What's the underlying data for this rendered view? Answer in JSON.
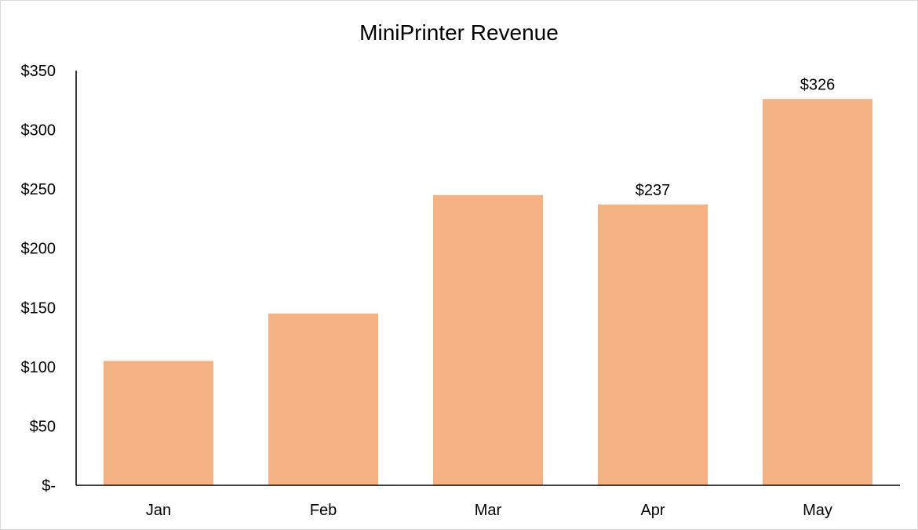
{
  "chart_data": {
    "type": "bar",
    "title": "MiniPrinter Revenue",
    "xlabel": "",
    "ylabel": "",
    "categories": [
      "Jan",
      "Feb",
      "Mar",
      "Apr",
      "May"
    ],
    "values": [
      105,
      145,
      245,
      237,
      326
    ],
    "data_labels": [
      "",
      "",
      "",
      "$237",
      "$326"
    ],
    "ylim": [
      0,
      350
    ],
    "yticks": [
      0,
      50,
      100,
      150,
      200,
      250,
      300,
      350
    ],
    "ytick_labels": [
      "$-",
      "$50",
      "$100",
      "$150",
      "$200",
      "$250",
      "$300",
      "$350"
    ],
    "bar_color": "#F4B183",
    "grid": false,
    "legend": "none"
  }
}
